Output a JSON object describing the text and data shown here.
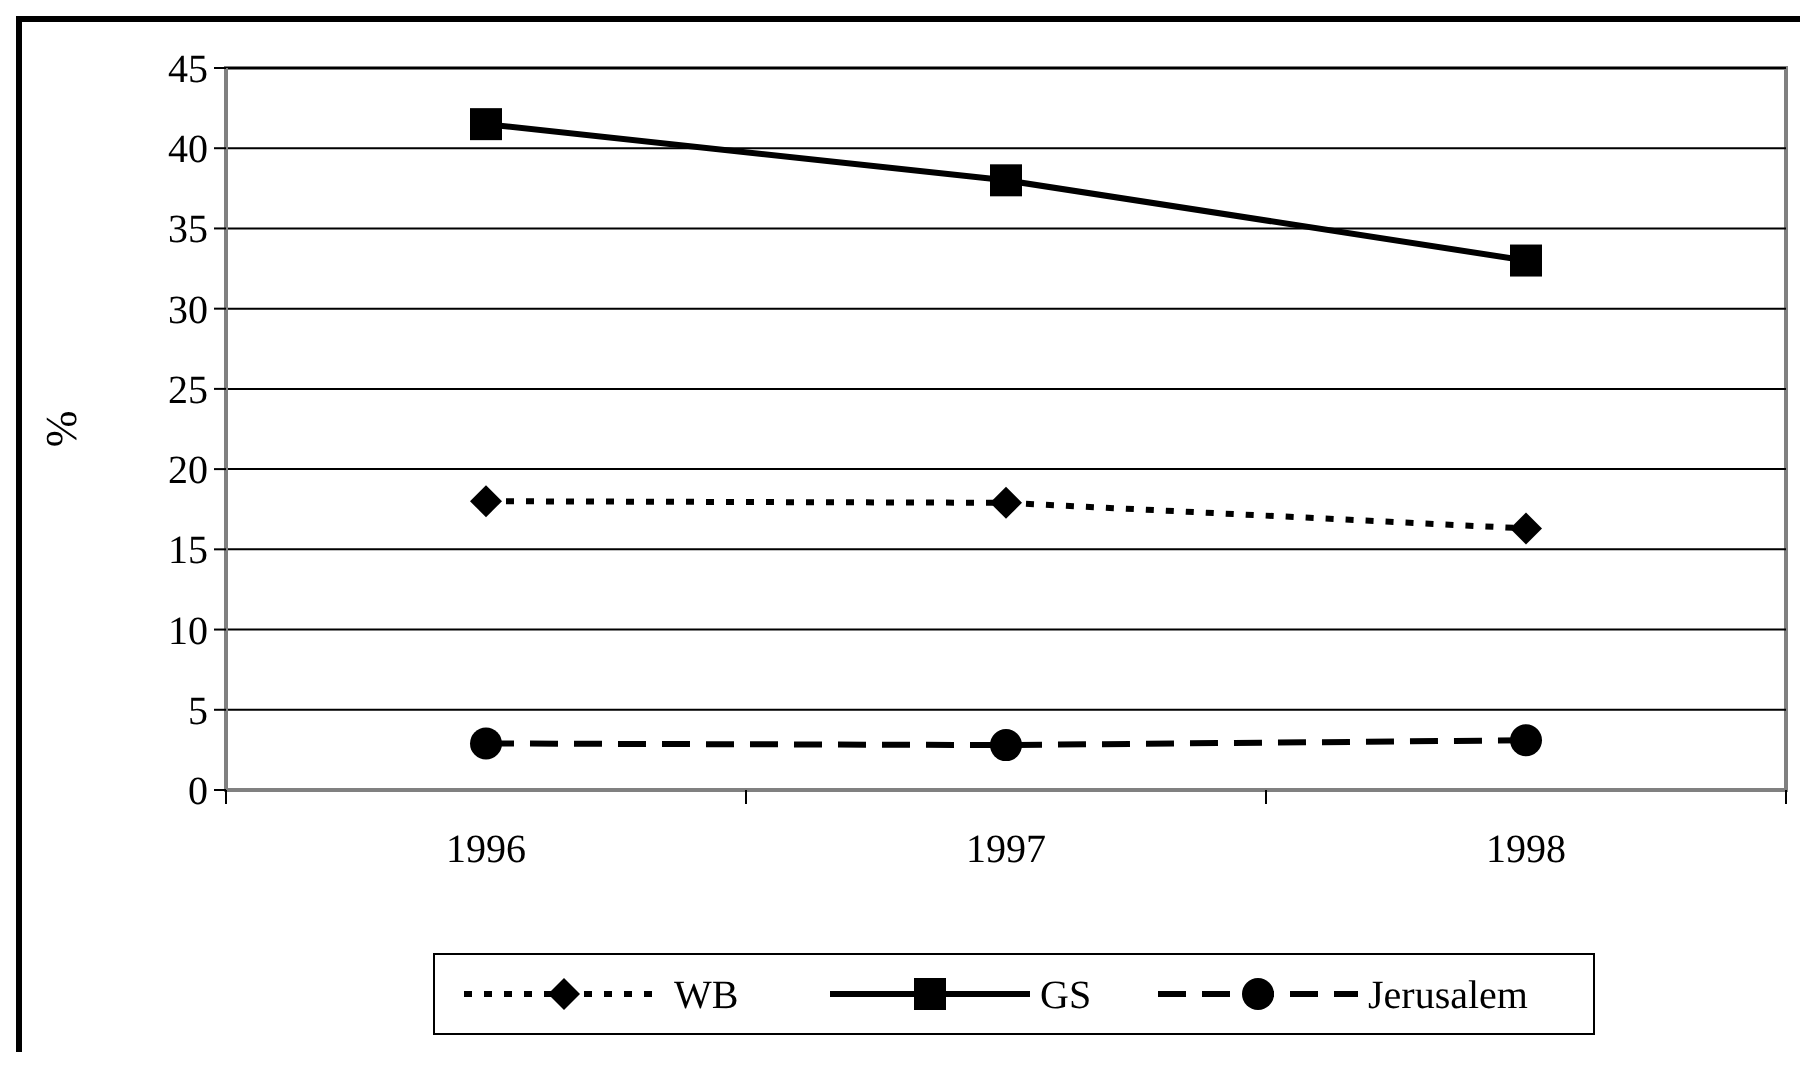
{
  "chart_data": {
    "type": "line",
    "ylabel": "%",
    "categories": [
      "1996",
      "1997",
      "1998"
    ],
    "ylim": [
      0,
      45
    ],
    "yticks": [
      0,
      5,
      10,
      15,
      20,
      25,
      30,
      35,
      40,
      45
    ],
    "grid": "y",
    "legend": "bottom",
    "series": [
      {
        "name": "WB",
        "color": "#000000",
        "values": [
          18.0,
          17.9,
          16.3
        ],
        "marker": "diamond",
        "line_style": "dotted"
      },
      {
        "name": "GS",
        "color": "#000000",
        "values": [
          41.5,
          38.0,
          33.0
        ],
        "marker": "square",
        "line_style": "solid"
      },
      {
        "name": "Jerusalem",
        "color": "#000000",
        "values": [
          2.9,
          2.8,
          3.1
        ],
        "marker": "circle",
        "line_style": "dashed"
      }
    ]
  }
}
